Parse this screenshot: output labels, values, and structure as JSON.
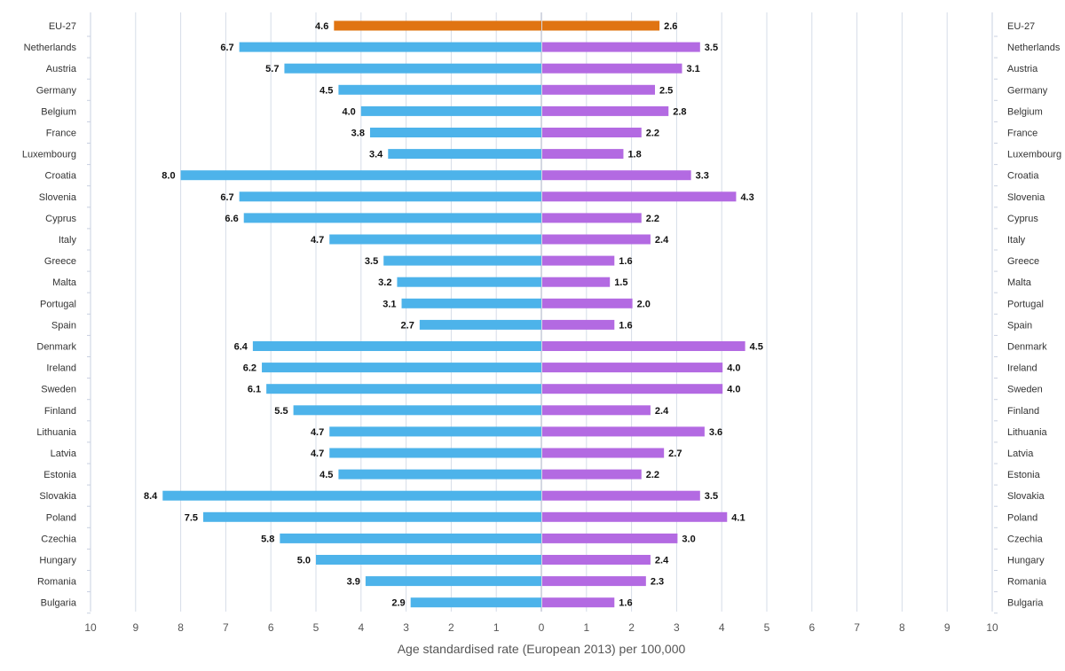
{
  "chart_data": {
    "type": "bar",
    "orientation": "horizontal-butterfly",
    "categories": [
      "EU-27",
      "Netherlands",
      "Austria",
      "Germany",
      "Belgium",
      "France",
      "Luxembourg",
      "Croatia",
      "Slovenia",
      "Cyprus",
      "Italy",
      "Greece",
      "Malta",
      "Portugal",
      "Spain",
      "Denmark",
      "Ireland",
      "Sweden",
      "Finland",
      "Lithuania",
      "Latvia",
      "Estonia",
      "Slovakia",
      "Poland",
      "Czechia",
      "Hungary",
      "Romania",
      "Bulgaria"
    ],
    "series": [
      {
        "side": "left",
        "values": [
          4.6,
          6.7,
          5.7,
          4.5,
          4.0,
          3.8,
          3.4,
          8.0,
          6.7,
          6.6,
          4.7,
          3.5,
          3.2,
          3.1,
          2.7,
          6.4,
          6.2,
          6.1,
          5.5,
          4.7,
          4.7,
          4.5,
          8.4,
          7.5,
          5.8,
          5.0,
          3.9,
          2.9
        ]
      },
      {
        "side": "right",
        "values": [
          2.6,
          3.5,
          3.1,
          2.5,
          2.8,
          2.2,
          1.8,
          3.3,
          4.3,
          2.2,
          2.4,
          1.6,
          1.5,
          2.0,
          1.6,
          4.5,
          4.0,
          4.0,
          2.4,
          3.6,
          2.7,
          2.2,
          3.5,
          4.1,
          3.0,
          2.4,
          2.3,
          1.6
        ]
      }
    ],
    "value_labels_left": [
      "4.6",
      "6.7",
      "5.7",
      "4.5",
      "4.0",
      "3.8",
      "3.4",
      "8.0",
      "6.7",
      "6.6",
      "4.7",
      "3.5",
      "3.2",
      "3.1",
      "2.7",
      "6.4",
      "6.2",
      "6.1",
      "5.5",
      "4.7",
      "4.7",
      "4.5",
      "8.4",
      "7.5",
      "5.8",
      "5.0",
      "3.9",
      "2.9"
    ],
    "value_labels_right": [
      "2.6",
      "3.5",
      "3.1",
      "2.5",
      "2.8",
      "2.2",
      "1.8",
      "3.3",
      "4.3",
      "2.2",
      "2.4",
      "1.6",
      "1.5",
      "2.0",
      "1.6",
      "4.5",
      "4.0",
      "4.0",
      "2.4",
      "3.6",
      "2.7",
      "2.2",
      "3.5",
      "4.1",
      "3.0",
      "2.4",
      "2.3",
      "1.6"
    ],
    "xlabel": "Age standardised rate (European 2013) per 100,000",
    "xlim": [
      0,
      10
    ],
    "left_ticks": [
      "10",
      "9",
      "8",
      "7",
      "6",
      "5",
      "4",
      "3",
      "2",
      "1",
      "0"
    ],
    "right_ticks": [
      "1",
      "2",
      "3",
      "4",
      "5",
      "6",
      "7",
      "8",
      "9",
      "10"
    ],
    "grid": true,
    "colors": {
      "left": "#4db3ea",
      "right": "#b36ae2",
      "highlight": "#e07412",
      "grid": "#d6dde8",
      "axis": "#c8d0e0"
    },
    "highlight_category": "EU-27"
  }
}
